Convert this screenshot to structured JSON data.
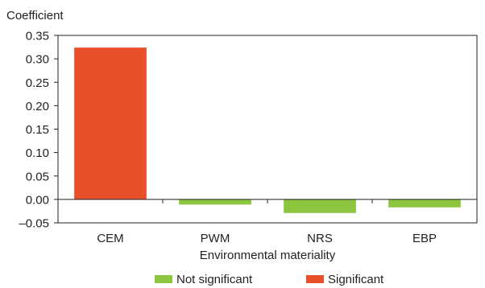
{
  "chart_data": {
    "type": "bar",
    "title": "",
    "ylabel": "Coefficient",
    "xlabel": "Environmental materiality",
    "categories": [
      "CEM",
      "PWM",
      "NRS",
      "EBP"
    ],
    "values": [
      0.324,
      -0.011,
      -0.029,
      -0.017
    ],
    "significance": [
      "Significant",
      "Not significant",
      "Not significant",
      "Not significant"
    ],
    "ylim": [
      -0.05,
      0.35
    ],
    "yticks": [
      -0.05,
      0.0,
      0.05,
      0.1,
      0.15,
      0.2,
      0.25,
      0.3,
      0.35
    ],
    "ytick_labels": [
      "–0.05",
      "0.00",
      "0.05",
      "0.10",
      "0.15",
      "0.20",
      "0.25",
      "0.30",
      "0.35"
    ],
    "grid": false,
    "legend_position": "bottom",
    "legend": [
      {
        "label": "Not significant",
        "color": "#8cc63f"
      },
      {
        "label": "Significant",
        "color": "#e8502a"
      }
    ],
    "colors": {
      "Not significant": "#8cc63f",
      "Significant": "#e8502a",
      "axis": "#231f20"
    }
  }
}
